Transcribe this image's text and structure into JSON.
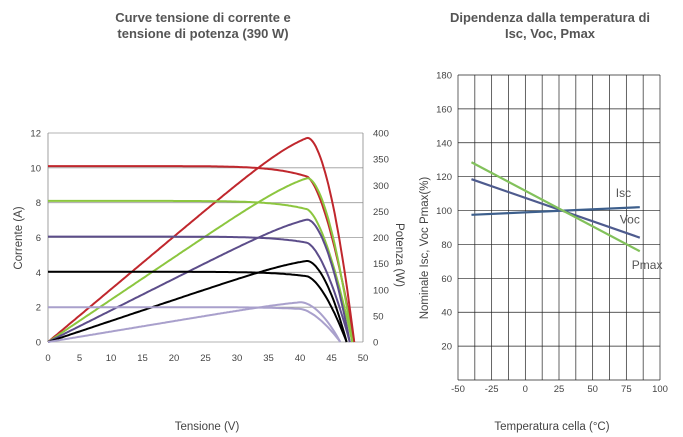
{
  "chart_data": [
    {
      "type": "line",
      "title_lines": [
        "Curve tensione di corrente e",
        "tensione di potenza (390 W)"
      ],
      "xlabel": "Tensione (V)",
      "ylabel": "Corrente (A)",
      "y2label": "Potenza (W)",
      "xlim": [
        0,
        50
      ],
      "ylim": [
        0,
        12
      ],
      "y2lim": [
        0,
        400
      ],
      "xticks": [
        0,
        5,
        10,
        15,
        20,
        25,
        30,
        35,
        40,
        45,
        50
      ],
      "yticks": [
        0,
        2,
        4,
        6,
        8,
        10,
        12
      ],
      "y2ticks": [
        0,
        50,
        100,
        150,
        200,
        250,
        300,
        350,
        400
      ],
      "grid": "horizontal",
      "curves": [
        {
          "color": "#c0272d",
          "isc": 10.1,
          "voc": 48.6,
          "pmax": 390,
          "vmp": 41
        },
        {
          "color": "#8cc63f",
          "isc": 8.1,
          "voc": 48.3,
          "pmax": 313,
          "vmp": 41
        },
        {
          "color": "#5c4d8a",
          "isc": 6.05,
          "voc": 47.9,
          "pmax": 234,
          "vmp": 41
        },
        {
          "color": "#000000",
          "isc": 4.03,
          "voc": 47.4,
          "pmax": 155,
          "vmp": 41
        },
        {
          "color": "#a9a0cc",
          "isc": 2.0,
          "voc": 46.4,
          "pmax": 76,
          "vmp": 40
        }
      ]
    },
    {
      "type": "line",
      "title_lines": [
        "Dipendenza dalla temperatura di",
        "Isc,  Voc,  Pmax"
      ],
      "xlabel": "Temperatura cella (°C)",
      "ylabel": "Nominale Isc, Voc Pmax(%)",
      "xlim": [
        -50,
        100
      ],
      "ylim": [
        0,
        180
      ],
      "xticks": [
        -50,
        -25,
        0,
        25,
        50,
        75,
        100
      ],
      "yticks": [
        20,
        40,
        60,
        80,
        100,
        120,
        140,
        160,
        180
      ],
      "grid": "both",
      "series": [
        {
          "name": "Isc",
          "color": "#3d5f8c",
          "x": [
            -40,
            85
          ],
          "values": [
            97.5,
            102.0
          ]
        },
        {
          "name": "Voc",
          "color": "#4e5b8e",
          "x": [
            -40,
            85
          ],
          "values": [
            118.5,
            84.0
          ]
        },
        {
          "name": "Pmax",
          "color": "#82c15b",
          "x": [
            -40,
            85
          ],
          "values": [
            128.5,
            76.0
          ]
        }
      ]
    }
  ]
}
